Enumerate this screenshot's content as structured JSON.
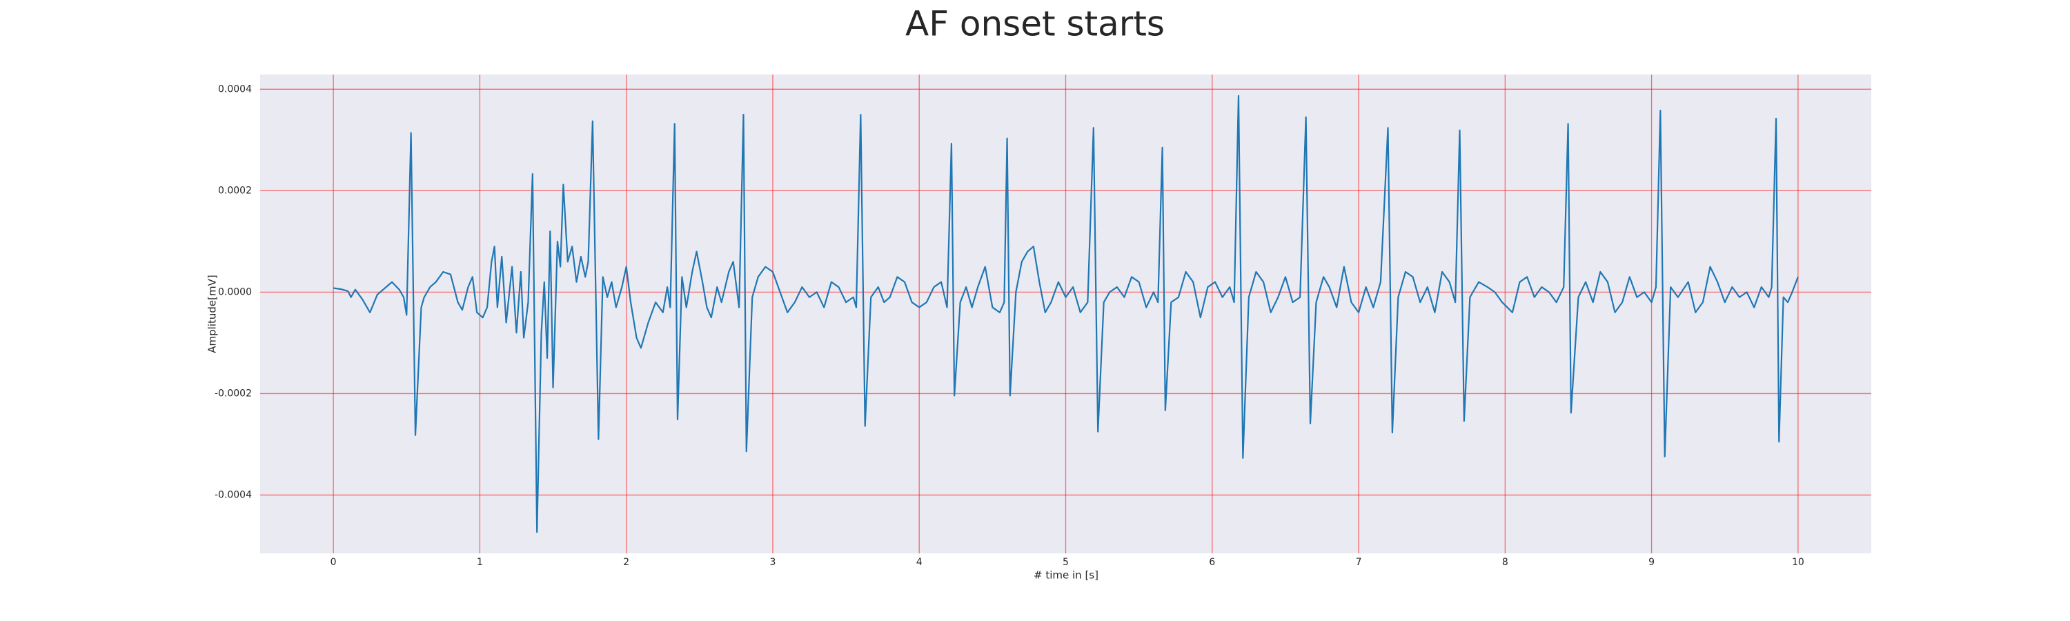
{
  "chart_data": {
    "type": "line",
    "title": "AF onset starts",
    "xlabel": "# time in [s]",
    "ylabel": "Amplitude[mV]",
    "color": "#1f77b4",
    "grid": true,
    "grid_color": "#ff0000",
    "background": "#eaeaf2",
    "xlim": [
      -0.5,
      10.5
    ],
    "ylim": [
      -0.000515,
      0.000429
    ],
    "xticks": [
      0,
      1,
      2,
      3,
      4,
      5,
      6,
      7,
      8,
      9,
      10
    ],
    "yticks": [
      -0.0004,
      -0.0002,
      {
        "value": 0,
        "label": "0.0000"
      },
      0.0002,
      0.0004
    ],
    "x": [
      0,
      0.05,
      0.1,
      0.12,
      0.15,
      0.2,
      0.25,
      0.3,
      0.38,
      0.4,
      0.45,
      0.48,
      0.5,
      0.53,
      0.56,
      0.6,
      0.62,
      0.66,
      0.7,
      0.75,
      0.8,
      0.85,
      0.88,
      0.92,
      0.95,
      0.98,
      1.02,
      1.05,
      1.08,
      1.1,
      1.12,
      1.15,
      1.18,
      1.22,
      1.25,
      1.28,
      1.3,
      1.33,
      1.36,
      1.39,
      1.42,
      1.44,
      1.46,
      1.48,
      1.5,
      1.53,
      1.55,
      1.57,
      1.6,
      1.63,
      1.66,
      1.69,
      1.72,
      1.74,
      1.77,
      1.81,
      1.84,
      1.87,
      1.9,
      1.93,
      1.97,
      2.0,
      2.03,
      2.07,
      2.1,
      2.15,
      2.2,
      2.25,
      2.28,
      2.3,
      2.33,
      2.35,
      2.38,
      2.41,
      2.45,
      2.48,
      2.52,
      2.55,
      2.58,
      2.62,
      2.65,
      2.7,
      2.73,
      2.77,
      2.8,
      2.82,
      2.86,
      2.9,
      2.95,
      3.0,
      3.05,
      3.1,
      3.15,
      3.2,
      3.25,
      3.3,
      3.35,
      3.4,
      3.45,
      3.5,
      3.55,
      3.57,
      3.6,
      3.63,
      3.67,
      3.72,
      3.76,
      3.8,
      3.85,
      3.9,
      3.95,
      4.0,
      4.05,
      4.1,
      4.15,
      4.19,
      4.22,
      4.24,
      4.28,
      4.32,
      4.36,
      4.4,
      4.45,
      4.5,
      4.55,
      4.58,
      4.6,
      4.62,
      4.66,
      4.7,
      4.74,
      4.78,
      4.82,
      4.86,
      4.9,
      4.95,
      5.0,
      5.05,
      5.1,
      5.15,
      5.19,
      5.22,
      5.26,
      5.3,
      5.35,
      5.4,
      5.45,
      5.5,
      5.55,
      5.6,
      5.63,
      5.66,
      5.68,
      5.72,
      5.77,
      5.82,
      5.87,
      5.92,
      5.97,
      6.02,
      6.07,
      6.12,
      6.15,
      6.18,
      6.21,
      6.25,
      6.3,
      6.35,
      6.4,
      6.45,
      6.5,
      6.55,
      6.6,
      6.64,
      6.67,
      6.71,
      6.76,
      6.8,
      6.85,
      6.9,
      6.95,
      7.0,
      7.05,
      7.1,
      7.15,
      7.2,
      7.23,
      7.27,
      7.32,
      7.37,
      7.42,
      7.47,
      7.52,
      7.57,
      7.62,
      7.66,
      7.69,
      7.72,
      7.76,
      7.82,
      7.88,
      7.93,
      7.98,
      8.05,
      8.1,
      8.15,
      8.2,
      8.25,
      8.3,
      8.35,
      8.4,
      8.43,
      8.45,
      8.5,
      8.55,
      8.6,
      8.65,
      8.7,
      8.75,
      8.8,
      8.85,
      8.9,
      8.95,
      9.0,
      9.03,
      9.06,
      9.09,
      9.13,
      9.18,
      9.25,
      9.3,
      9.35,
      9.4,
      9.45,
      9.5,
      9.55,
      9.6,
      9.65,
      9.7,
      9.75,
      9.8,
      9.82,
      9.85,
      9.87,
      9.9,
      9.93,
      9.96,
      10.0
    ],
    "values": [
      8e-06,
      6e-06,
      2e-06,
      -1e-05,
      5e-06,
      -1.5e-05,
      -4e-05,
      -5e-06,
      1.5e-05,
      2e-05,
      5e-06,
      -1e-05,
      -4.5e-05,
      0.000314,
      -0.000282,
      -3e-05,
      -1e-05,
      1e-05,
      2e-05,
      4e-05,
      3.5e-05,
      -2e-05,
      -3.5e-05,
      1e-05,
      3e-05,
      -4e-05,
      -5e-05,
      -3e-05,
      6e-05,
      9e-05,
      -3e-05,
      7e-05,
      -6e-05,
      5e-05,
      -8e-05,
      4e-05,
      -9e-05,
      -2e-05,
      0.000233,
      -0.000473,
      -8e-05,
      2e-05,
      -0.00013,
      0.00012,
      -0.000188,
      0.0001,
      5e-05,
      0.000212,
      6e-05,
      9e-05,
      2e-05,
      7e-05,
      3e-05,
      6e-05,
      0.000337,
      -0.00029,
      3e-05,
      -1e-05,
      2e-05,
      -3e-05,
      1e-05,
      5e-05,
      -2e-05,
      -9e-05,
      -0.00011,
      -6e-05,
      -2e-05,
      -4e-05,
      1e-05,
      -3e-05,
      0.000332,
      -0.000251,
      3e-05,
      -3e-05,
      4e-05,
      8e-05,
      2e-05,
      -3e-05,
      -5e-05,
      1e-05,
      -2e-05,
      4e-05,
      6e-05,
      -3e-05,
      0.00035,
      -0.000314,
      -1e-05,
      3e-05,
      5e-05,
      4e-05,
      0,
      -4e-05,
      -2e-05,
      1e-05,
      -1e-05,
      0,
      -3e-05,
      2e-05,
      1e-05,
      -2e-05,
      -1e-05,
      -3e-05,
      0.00035,
      -0.000264,
      -1e-05,
      1e-05,
      -2e-05,
      -1e-05,
      3e-05,
      2e-05,
      -2e-05,
      -3e-05,
      -2e-05,
      1e-05,
      2e-05,
      -3e-05,
      0.000293,
      -0.000204,
      -2e-05,
      1e-05,
      -3e-05,
      1e-05,
      5e-05,
      -3e-05,
      -4e-05,
      -2e-05,
      0.000303,
      -0.000204,
      0,
      6e-05,
      8e-05,
      9e-05,
      2e-05,
      -4e-05,
      -2e-05,
      2e-05,
      -1e-05,
      1e-05,
      -4e-05,
      -2e-05,
      0.000324,
      -0.000275,
      -2e-05,
      0,
      1e-05,
      -1e-05,
      3e-05,
      2e-05,
      -3e-05,
      0,
      -2e-05,
      0.000285,
      -0.000233,
      -2e-05,
      -1e-05,
      4e-05,
      2e-05,
      -5e-05,
      1e-05,
      2e-05,
      -1e-05,
      1e-05,
      -2e-05,
      0.000387,
      -0.000327,
      -1e-05,
      4e-05,
      2e-05,
      -4e-05,
      -1e-05,
      3e-05,
      -2e-05,
      -1e-05,
      0.000345,
      -0.000259,
      -2e-05,
      3e-05,
      1e-05,
      -3e-05,
      5e-05,
      -2e-05,
      -4e-05,
      1e-05,
      -3e-05,
      2e-05,
      0.000324,
      -0.000277,
      -1e-05,
      4e-05,
      3e-05,
      -2e-05,
      1e-05,
      -4e-05,
      4e-05,
      2e-05,
      -2e-05,
      0.000319,
      -0.000254,
      -1e-05,
      2e-05,
      1e-05,
      0,
      -2e-05,
      -4e-05,
      2e-05,
      3e-05,
      -1e-05,
      1e-05,
      0,
      -2e-05,
      1e-05,
      0.000332,
      -0.000238,
      -1e-05,
      2e-05,
      -2e-05,
      4e-05,
      2e-05,
      -4e-05,
      -2e-05,
      3e-05,
      -1e-05,
      0,
      -2e-05,
      1e-05,
      0.000358,
      -0.000324,
      1e-05,
      -1e-05,
      2e-05,
      -4e-05,
      -2e-05,
      5e-05,
      2e-05,
      -2e-05,
      1e-05,
      -1e-05,
      0,
      -3e-05,
      1e-05,
      -1e-05,
      1e-05,
      0.000342,
      -0.000295,
      -1e-05,
      -2e-05,
      0,
      3e-05
    ]
  }
}
